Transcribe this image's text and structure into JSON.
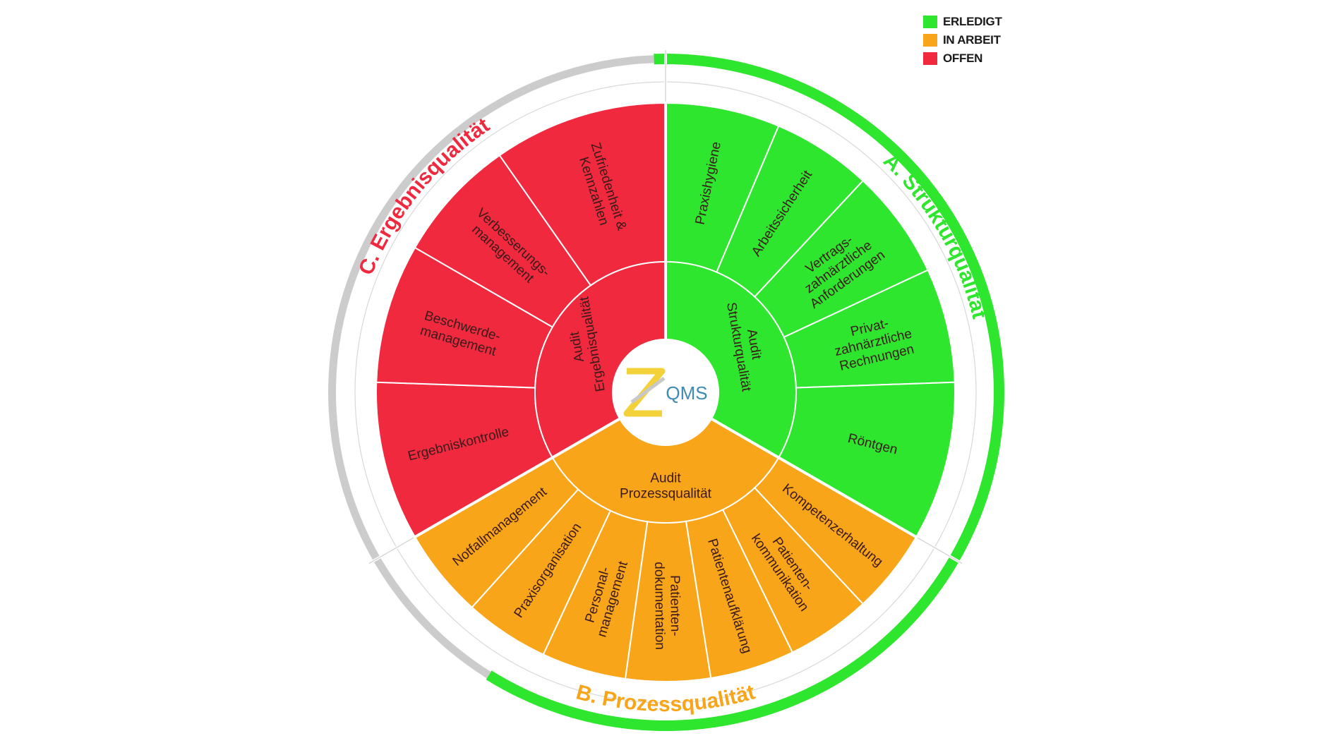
{
  "legend": [
    {
      "label": "ERLEDIGT",
      "color": "#2ee62e"
    },
    {
      "label": "IN ARBEIT",
      "color": "#f9a51a"
    },
    {
      "label": "OFFEN",
      "color": "#f0293f"
    }
  ],
  "logo": {
    "text": "QMS"
  },
  "sections": {
    "a": {
      "title": "A. Strukturqualität",
      "status": "ERLEDIGT",
      "color": "#2ee62e",
      "audit": [
        "Audit",
        "Strukturqualität"
      ],
      "segments": [
        [
          "Praxishygiene"
        ],
        [
          "Arbeitssicherheit"
        ],
        [
          "Vertrags-",
          "zahnärztliche",
          "Anforderungen"
        ],
        [
          "Privat-",
          "zahnärztliche",
          "Rechnungen"
        ],
        [
          "Röntgen"
        ]
      ]
    },
    "b": {
      "title": "B. Prozessqualität",
      "status": "IN ARBEIT",
      "color": "#f9a51a",
      "title_color": "#f9a51a",
      "audit": [
        "Audit",
        "Prozessqualität"
      ],
      "segments": [
        [
          "Kompetenzerhaltung"
        ],
        [
          "Patienten-",
          "kommunikation"
        ],
        [
          "Patientenaufklärung"
        ],
        [
          "Patienten-",
          "dokumentation"
        ],
        [
          "Personal-",
          "management"
        ],
        [
          "Praxisorganisation"
        ],
        [
          "Notfallmanagement"
        ]
      ]
    },
    "c": {
      "title": "C. Ergebnisqualität",
      "status": "OFFEN",
      "color": "#f0293f",
      "audit": [
        "Audit",
        "Ergebnisqualität"
      ],
      "segments": [
        [
          "Ergebniskontrolle"
        ],
        [
          "Beschwerde-",
          "management"
        ],
        [
          "Verbesserungs-",
          "management"
        ],
        [
          "Zufriedenheit &",
          "Kennzahlen"
        ]
      ]
    }
  },
  "outer_ring": {
    "done_color": "#2ee62e",
    "open_color": "#cccccc"
  }
}
